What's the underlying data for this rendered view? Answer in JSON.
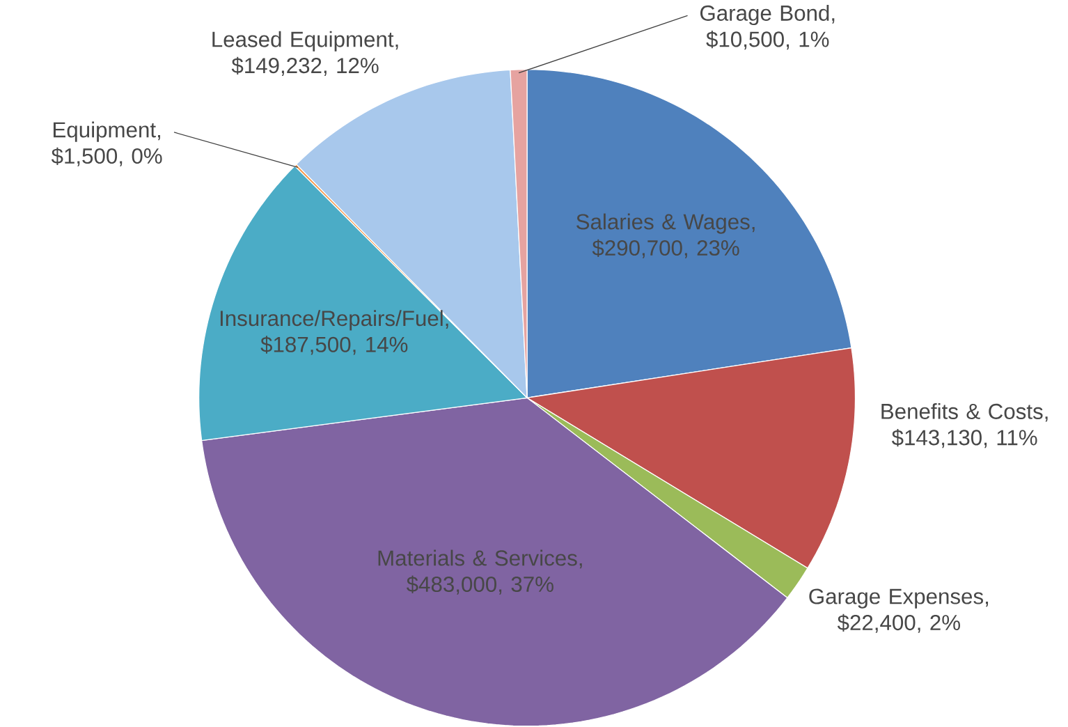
{
  "chart_data": {
    "type": "pie",
    "categories": [
      "Salaries & Wages, $290,700, 23%",
      "Benefits & Costs, $143,130, 11%",
      "Garage Expenses, $22,400, 2%",
      "Materials & Services, $483,000, 37%",
      "Insurance/Repairs/Fuel, $187,500, 14%",
      "Equipment, $1,500, 0%",
      "Leased Equipment, $149,232, 12%",
      "Garage Bond, $10,500, 1%"
    ],
    "values": [
      290700,
      143130,
      22400,
      483000,
      187500,
      1500,
      149232,
      10500
    ],
    "colors": [
      "#4f81bd",
      "#c0504d",
      "#9bbb59",
      "#8064a2",
      "#4bacc6",
      "#f79646",
      "#a8c8ec",
      "#e6a3a0"
    ]
  }
}
